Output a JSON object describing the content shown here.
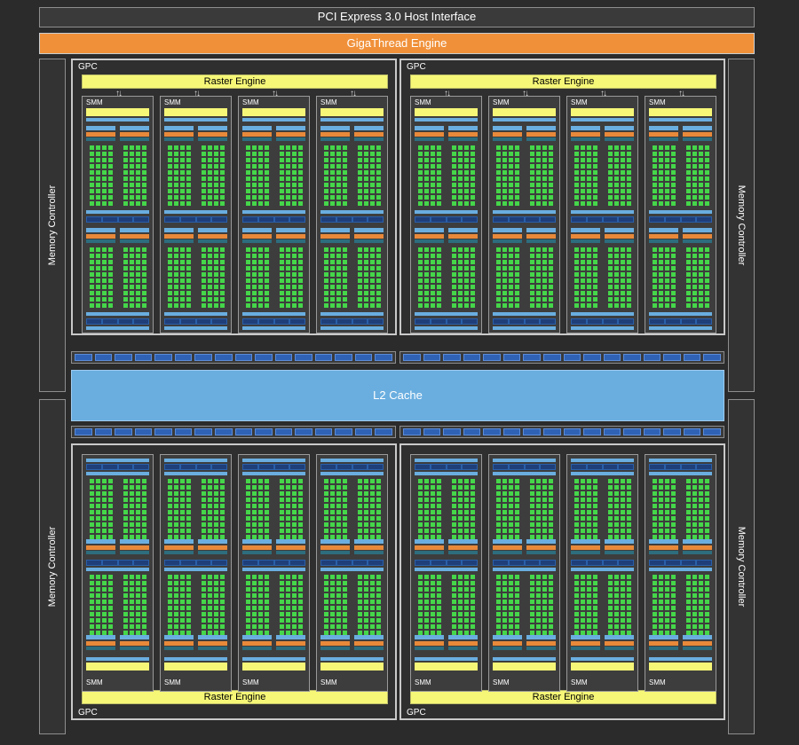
{
  "header": {
    "pci_label": "PCI Express 3.0 Host Interface",
    "gigathread_label": "GigaThread Engine"
  },
  "memory_controller_label": "Memory Controller",
  "l2_label": "L2 Cache",
  "gpc_label": "GPC",
  "raster_label": "Raster Engine",
  "smm_label": "SMM",
  "colors": {
    "background": "#2b2b2b",
    "gigathread": "#f0913a",
    "raster_engine": "#f6f777",
    "l2_cache": "#6aaee0",
    "cuda_core": "#45d64a",
    "load_store": "#2f62b4",
    "dispatch": "#e8893a"
  }
}
